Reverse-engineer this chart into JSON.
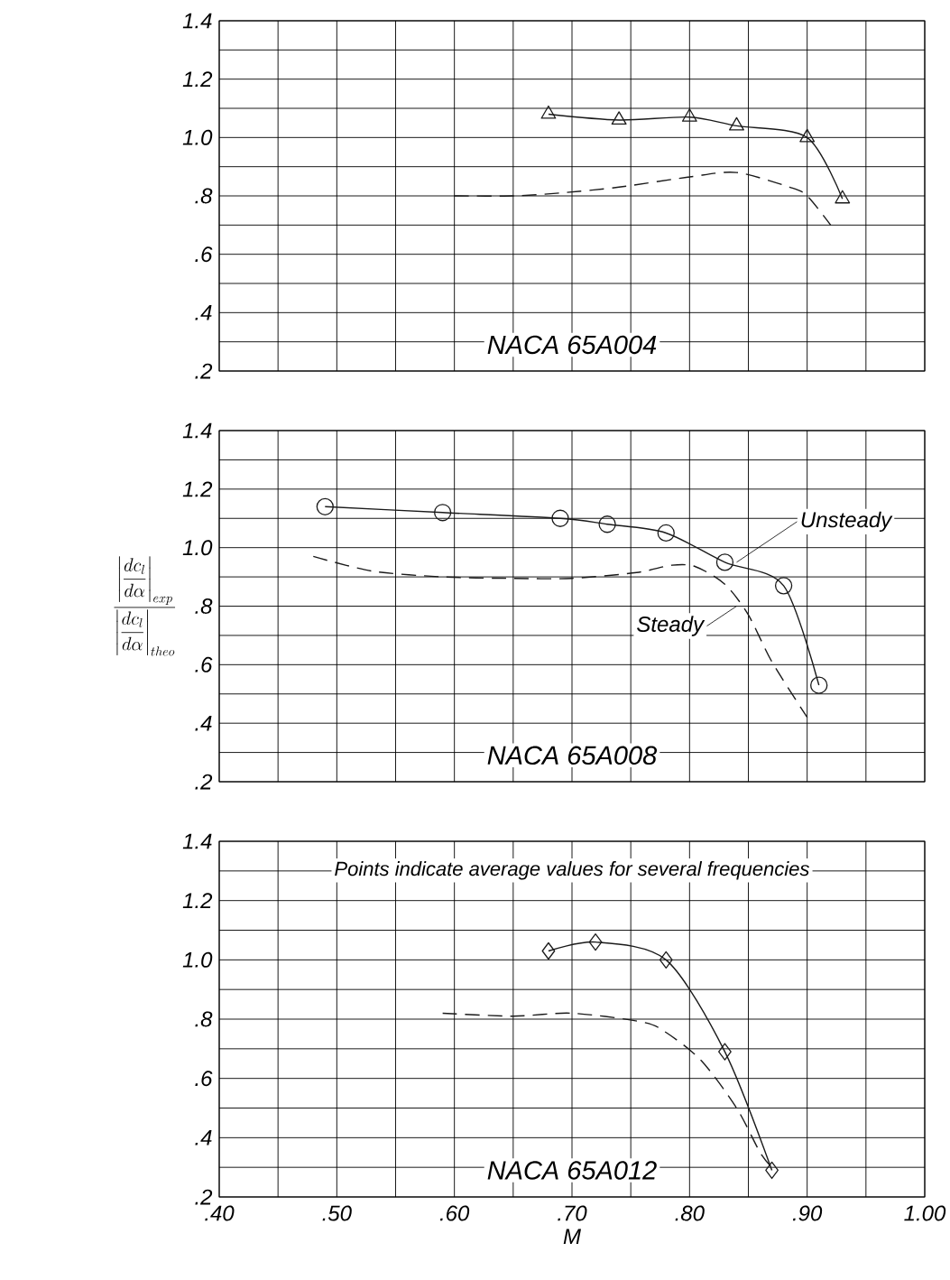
{
  "chart_data": [
    {
      "type": "line",
      "xlim": [
        0.4,
        1.0
      ],
      "ylim": [
        0.2,
        1.4
      ],
      "xticks": [
        0.4,
        0.5,
        0.6,
        0.7,
        0.8,
        0.9,
        1.0
      ],
      "yticks": [
        {
          "value": 0.2,
          "label": ".2"
        },
        {
          "value": 0.4,
          "label": ".4"
        },
        {
          "value": 0.6,
          "label": ".6"
        },
        {
          "value": 0.8,
          "label": ".8"
        },
        {
          "value": 1.0,
          "label": "1.0"
        },
        {
          "value": 1.2,
          "label": "1.2"
        },
        {
          "value": 1.4,
          "label": "1.4"
        }
      ],
      "tick_labels": "y",
      "grid": true,
      "series": [
        {
          "color": "#1a1a1a",
          "marker": "triangle",
          "line_style": "solid",
          "x": [
            0.68,
            0.74,
            0.8,
            0.84,
            0.9,
            0.93
          ],
          "values": [
            1.08,
            1.06,
            1.07,
            1.04,
            1.0,
            0.79
          ]
        },
        {
          "color": "#1a1a1a",
          "marker": "none",
          "line_style": "dashed",
          "x": [
            0.6,
            0.65,
            0.69,
            0.74,
            0.8,
            0.84,
            0.885,
            0.9,
            0.92
          ],
          "values": [
            0.8,
            0.8,
            0.81,
            0.83,
            0.865,
            0.88,
            0.83,
            0.8,
            0.7
          ]
        }
      ],
      "annotations": [
        "NACA 65A004"
      ]
    },
    {
      "type": "line",
      "xlim": [
        0.4,
        1.0
      ],
      "ylim": [
        0.2,
        1.4
      ],
      "xticks": [
        0.4,
        0.5,
        0.6,
        0.7,
        0.8,
        0.9,
        1.0
      ],
      "yticks": [
        {
          "value": 0.2,
          "label": ".2"
        },
        {
          "value": 0.4,
          "label": ".4"
        },
        {
          "value": 0.6,
          "label": ".6"
        },
        {
          "value": 0.8,
          "label": ".8"
        },
        {
          "value": 1.0,
          "label": "1.0"
        },
        {
          "value": 1.2,
          "label": "1.2"
        },
        {
          "value": 1.4,
          "label": "1.4"
        }
      ],
      "tick_labels": "y",
      "grid": true,
      "ylabel": "\\frac{\\left|\\dfrac{dc_l}{d\\alpha}\\right|_{exp}}{\\left|\\dfrac{dc_l}{d\\alpha}\\right|_{theo}}",
      "series": [
        {
          "color": "#1a1a1a",
          "marker": "circle",
          "line_style": "solid",
          "x": [
            0.49,
            0.59,
            0.69,
            0.73,
            0.78,
            0.83,
            0.88,
            0.91
          ],
          "values": [
            1.14,
            1.12,
            1.1,
            1.08,
            1.05,
            0.95,
            0.87,
            0.53
          ]
        },
        {
          "color": "#1a1a1a",
          "marker": "none",
          "line_style": "dashed",
          "x": [
            0.48,
            0.53,
            0.59,
            0.65,
            0.7,
            0.755,
            0.785,
            0.805,
            0.83,
            0.85,
            0.87,
            0.9
          ],
          "values": [
            0.97,
            0.92,
            0.9,
            0.895,
            0.895,
            0.915,
            0.94,
            0.935,
            0.875,
            0.77,
            0.61,
            0.42
          ]
        }
      ],
      "annotations": [
        {
          "text": "Unsteady",
          "x": 0.84,
          "y": 0.95
        },
        {
          "text": "Steady",
          "x": 0.84,
          "y": 0.8
        },
        "NACA 65A008"
      ]
    },
    {
      "type": "line",
      "xlim": [
        0.4,
        1.0
      ],
      "ylim": [
        0.2,
        1.4
      ],
      "xticks": [
        {
          "value": 0.4,
          "label": ".40"
        },
        {
          "value": 0.5,
          "label": ".50"
        },
        {
          "value": 0.6,
          "label": ".60"
        },
        {
          "value": 0.7,
          "label": ".70"
        },
        {
          "value": 0.8,
          "label": ".80"
        },
        {
          "value": 0.9,
          "label": ".90"
        },
        {
          "value": 1.0,
          "label": "1.00"
        }
      ],
      "yticks": [
        {
          "value": 0.2,
          "label": ".2"
        },
        {
          "value": 0.4,
          "label": ".4"
        },
        {
          "value": 0.6,
          "label": ".6"
        },
        {
          "value": 0.8,
          "label": ".8"
        },
        {
          "value": 1.0,
          "label": "1.0"
        },
        {
          "value": 1.2,
          "label": "1.2"
        },
        {
          "value": 1.4,
          "label": "1.4"
        }
      ],
      "grid": true,
      "xlabel": "M",
      "series": [
        {
          "color": "#1a1a1a",
          "marker": "diamond",
          "line_style": "solid",
          "x": [
            0.68,
            0.72,
            0.78,
            0.83,
            0.87
          ],
          "values": [
            1.03,
            1.06,
            1.0,
            0.69,
            0.29
          ]
        },
        {
          "color": "#1a1a1a",
          "marker": "none",
          "line_style": "dashed",
          "x": [
            0.59,
            0.65,
            0.7,
            0.76,
            0.78,
            0.81,
            0.84,
            0.86,
            0.87
          ],
          "values": [
            0.82,
            0.81,
            0.82,
            0.79,
            0.755,
            0.66,
            0.5,
            0.35,
            0.3
          ]
        }
      ],
      "annotations": [
        "Points indicate average values for several frequencies",
        "NACA 65A012"
      ]
    }
  ]
}
